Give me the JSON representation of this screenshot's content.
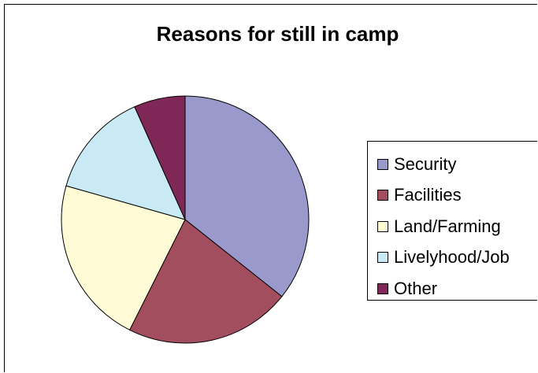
{
  "chart_data": {
    "type": "pie",
    "title": "Reasons for still in camp",
    "categories": [
      "Security",
      "Facilities",
      "Land/Farming",
      "Livelyhood/Job",
      "Other"
    ],
    "values": [
      35.7,
      21.7,
      22.0,
      13.9,
      6.7
    ],
    "colors": [
      "#9999CC",
      "#A34E5F",
      "#FFFBD6",
      "#C9EAF5",
      "#7F2857"
    ],
    "legend_position": "right"
  }
}
